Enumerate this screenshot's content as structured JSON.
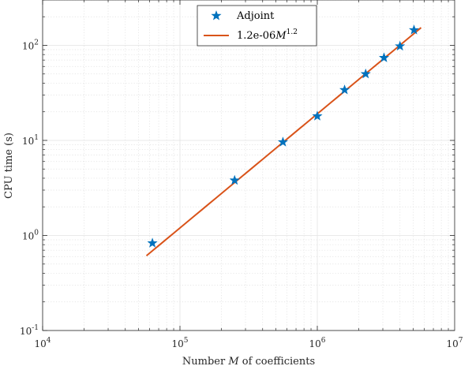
{
  "chart_data": {
    "type": "scatter",
    "x_scale": "log",
    "y_scale": "log",
    "xlim": [
      10000,
      10000000
    ],
    "ylim": [
      0.1,
      300
    ],
    "grid": true,
    "minor_grid": true,
    "xlabel_parts": [
      "Number ",
      "M",
      " of coefficients"
    ],
    "ylabel": "CPU time (s)",
    "x_ticks": [
      {
        "value": 10000,
        "base": "10",
        "exp": "4"
      },
      {
        "value": 100000,
        "base": "10",
        "exp": "5"
      },
      {
        "value": 1000000,
        "base": "10",
        "exp": "6"
      },
      {
        "value": 10000000,
        "base": "10",
        "exp": "7"
      }
    ],
    "y_ticks": [
      {
        "value": 0.1,
        "base": "10",
        "exp": "-1"
      },
      {
        "value": 1,
        "base": "10",
        "exp": "0"
      },
      {
        "value": 10,
        "base": "10",
        "exp": "1"
      },
      {
        "value": 100,
        "base": "10",
        "exp": "2"
      }
    ],
    "legend_position": "top-center",
    "series": [
      {
        "name": "Adjoint",
        "kind": "marker",
        "marker": "star",
        "color": "#0072BD",
        "x": [
          63000,
          250000,
          562000,
          1000000,
          1580000,
          2250000,
          3060000,
          4000000,
          5060000
        ],
        "y": [
          0.83,
          3.8,
          9.6,
          18,
          34,
          50,
          74,
          98,
          145
        ]
      },
      {
        "name_parts": [
          "1.2e-06",
          "M",
          "1.2"
        ],
        "kind": "line",
        "color": "#D95319",
        "coef": 1.2e-06,
        "power": 1.2,
        "x_range": [
          57000,
          5700000
        ]
      }
    ]
  }
}
